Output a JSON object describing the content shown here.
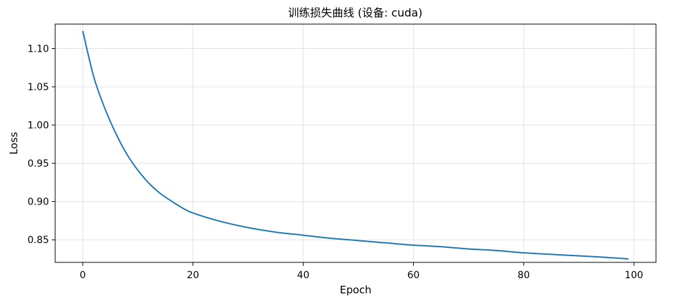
{
  "chart_data": {
    "type": "line",
    "title": "训练损失曲线 (设备: cuda)",
    "xlabel": "Epoch",
    "ylabel": "Loss",
    "xlim": [
      -5,
      104
    ],
    "ylim": [
      0.8205,
      1.132
    ],
    "xticks": [
      0,
      20,
      40,
      60,
      80,
      100
    ],
    "xtick_labels": [
      "0",
      "20",
      "40",
      "60",
      "80",
      "100"
    ],
    "yticks": [
      0.85,
      0.9,
      0.95,
      1.0,
      1.05,
      1.1
    ],
    "ytick_labels": [
      "0.85",
      "0.90",
      "0.95",
      "1.00",
      "1.05",
      "1.10"
    ],
    "grid": true,
    "series": [
      {
        "color": "#1f77b4",
        "x": [
          0,
          2,
          4,
          6,
          8,
          10,
          12,
          14,
          16,
          18,
          20,
          25,
          30,
          35,
          40,
          45,
          50,
          55,
          60,
          65,
          70,
          75,
          80,
          85,
          90,
          95,
          99
        ],
        "y": [
          1.123,
          1.063,
          1.022,
          0.989,
          0.962,
          0.941,
          0.924,
          0.911,
          0.901,
          0.892,
          0.885,
          0.874,
          0.866,
          0.86,
          0.856,
          0.852,
          0.849,
          0.846,
          0.843,
          0.841,
          0.838,
          0.836,
          0.833,
          0.831,
          0.829,
          0.827,
          0.825
        ]
      }
    ]
  }
}
